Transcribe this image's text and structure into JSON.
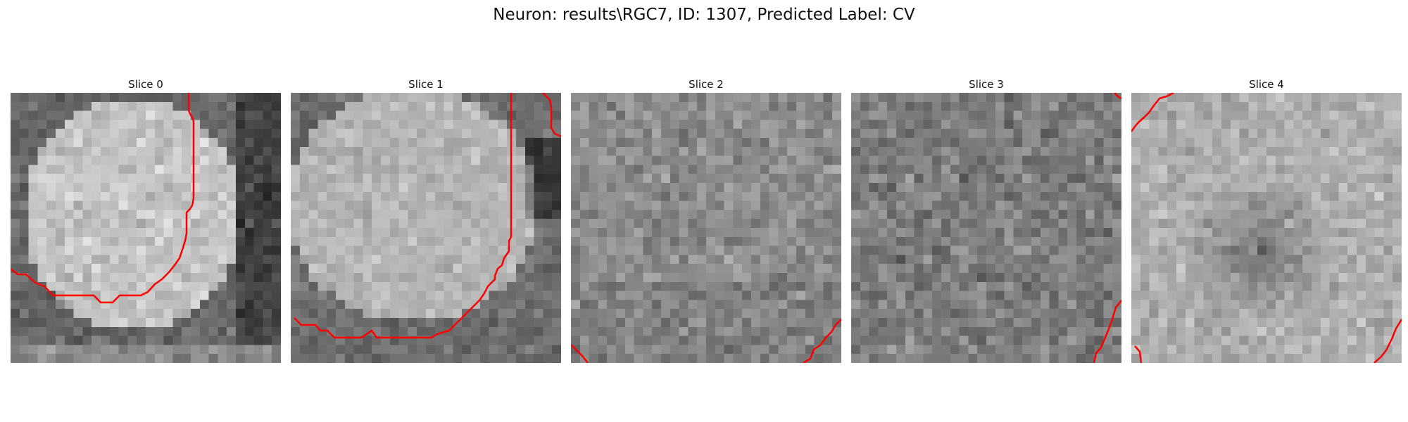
{
  "figure": {
    "title": "Neuron: results\\RGC7, ID: 1307, Predicted Label: CV"
  },
  "panels": [
    {
      "title": "Slice 0"
    },
    {
      "title": "Slice 1"
    },
    {
      "title": "Slice 2"
    },
    {
      "title": "Slice 3"
    },
    {
      "title": "Slice 4"
    }
  ],
  "contour_color": "#ff0000"
}
